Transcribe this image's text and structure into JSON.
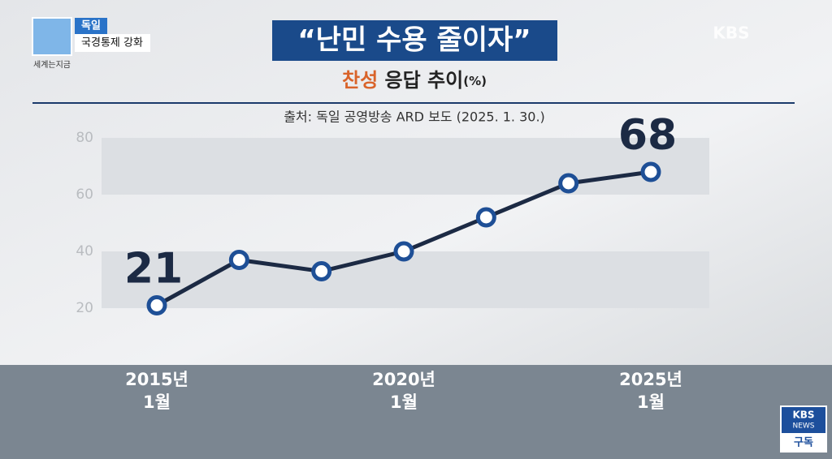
{
  "chart_data": {
    "type": "line",
    "title": "“난민 수용 줄이자”",
    "subtitle_highlight": "찬성",
    "subtitle": "응답 추이",
    "unit": "(%)",
    "source": "출처: 독일 공영방송 ARD 보도 (2025. 1. 30.)",
    "categories": [
      "2015년\n1월",
      null,
      null,
      "2020년\n1월",
      null,
      null,
      "2025년\n1월"
    ],
    "series": [
      {
        "name": "찬성",
        "color": "#1c2a44",
        "marker_color": "#1e4f96",
        "values": [
          21,
          37,
          33,
          40,
          52,
          64,
          68
        ],
        "value_labels": [
          "21",
          null,
          null,
          null,
          null,
          null,
          "68"
        ]
      }
    ],
    "ylim": [
      20,
      80
    ],
    "yticks": [
      20,
      40,
      60,
      80
    ],
    "grid_bands": true
  },
  "overlay": {
    "section": "독일",
    "headline": "국경통제 강화",
    "program": "세계는지금",
    "channel_logo": "KBS",
    "news_logo_top": "KBS",
    "news_logo_bottom": "NEWS",
    "subscribe": "구독"
  }
}
